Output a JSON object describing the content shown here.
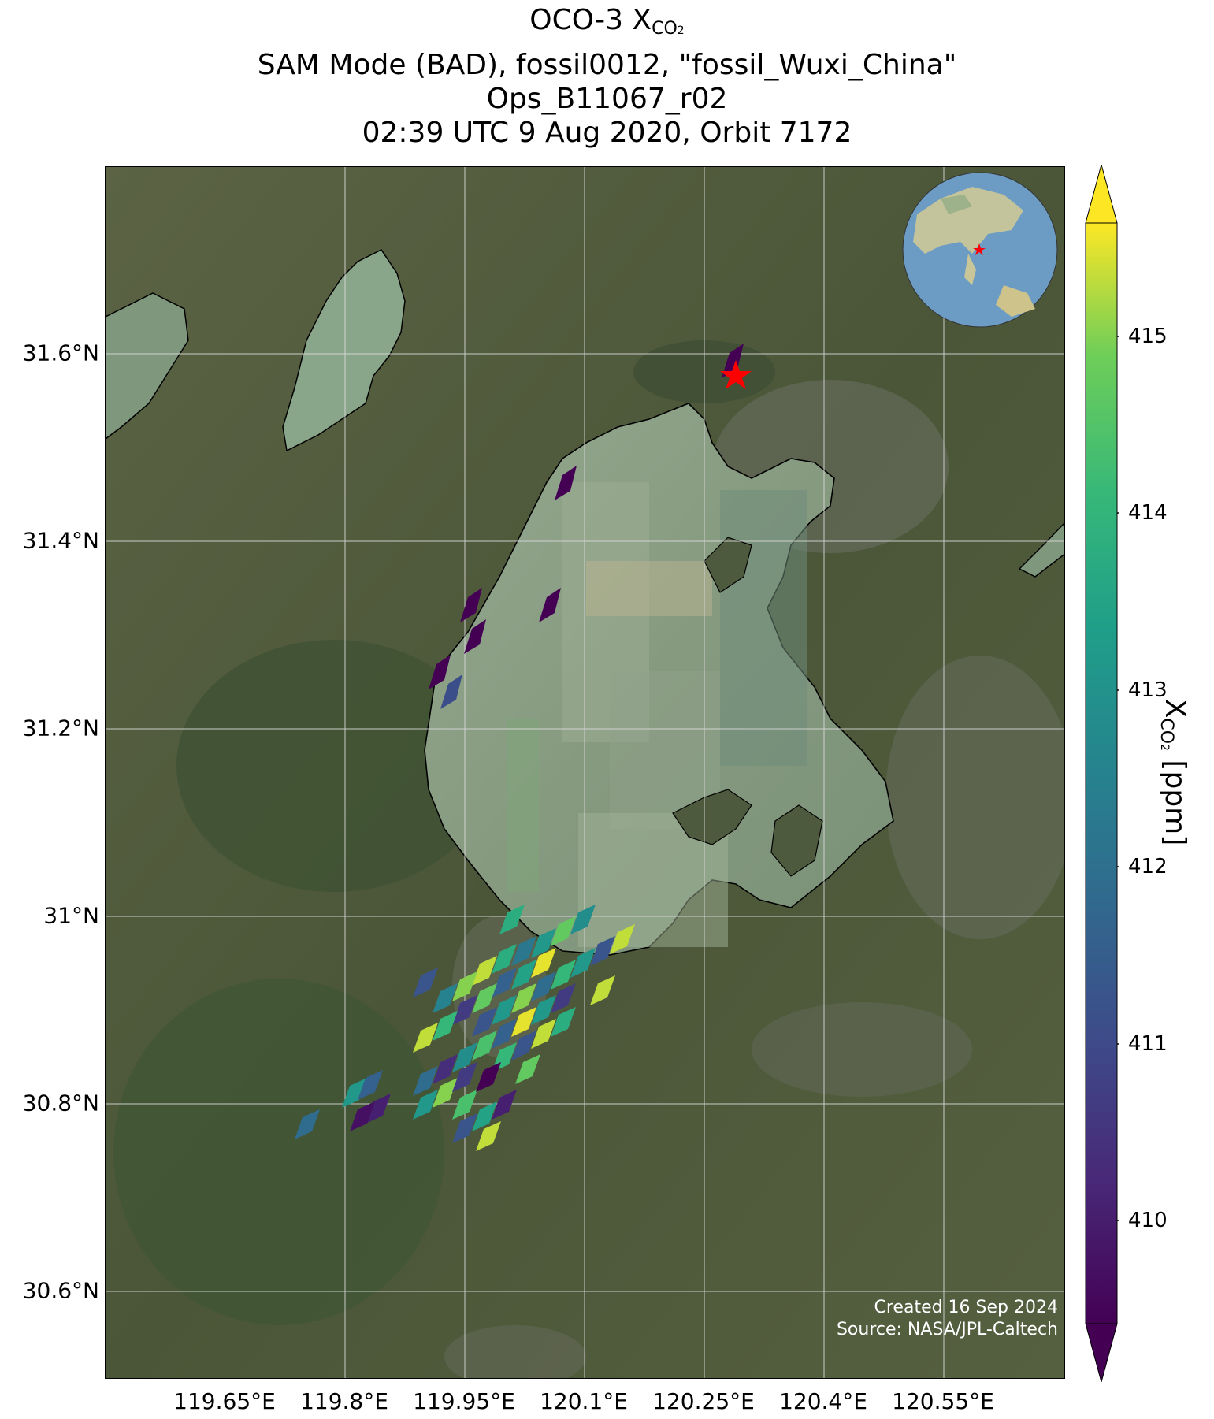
{
  "title": {
    "line1_prefix": "OCO-3 X",
    "line1_sub": "CO",
    "line1_subsub": "2",
    "line2": "SAM Mode (BAD), fossil0012, \"fossil_Wuxi_China\"",
    "line3": "Ops_B11067_r02",
    "line4": "02:39 UTC 9 Aug 2020, Orbit 7172"
  },
  "map": {
    "lat_ticks": [
      "31.6°N",
      "31.4°N",
      "31.2°N",
      "31°N",
      "30.8°N",
      "30.6°N"
    ],
    "lon_ticks": [
      "119.65°E",
      "119.8°E",
      "119.95°E",
      "120.1°E",
      "120.25°E",
      "120.4°E",
      "120.55°E"
    ],
    "target_marker": "red-star",
    "inset": "globe-locator"
  },
  "colorbar": {
    "colormap": "viridis",
    "ticks": [
      "415",
      "414",
      "413",
      "412",
      "411",
      "410"
    ],
    "label_prefix": "X",
    "label_sub": "CO2",
    "label_unit": "[ppm]",
    "range": [
      409.3,
      415.7
    ],
    "extend": "both"
  },
  "credit": {
    "created": "Created 16 Sep 2024",
    "source": "Source: NASA/JPL-Caltech"
  },
  "colors": {
    "grid": "#d8d8d8",
    "lake_outline": "#000000",
    "marker": "#ff0000",
    "land": "#4f5a3c",
    "water": "#8a9f86"
  }
}
